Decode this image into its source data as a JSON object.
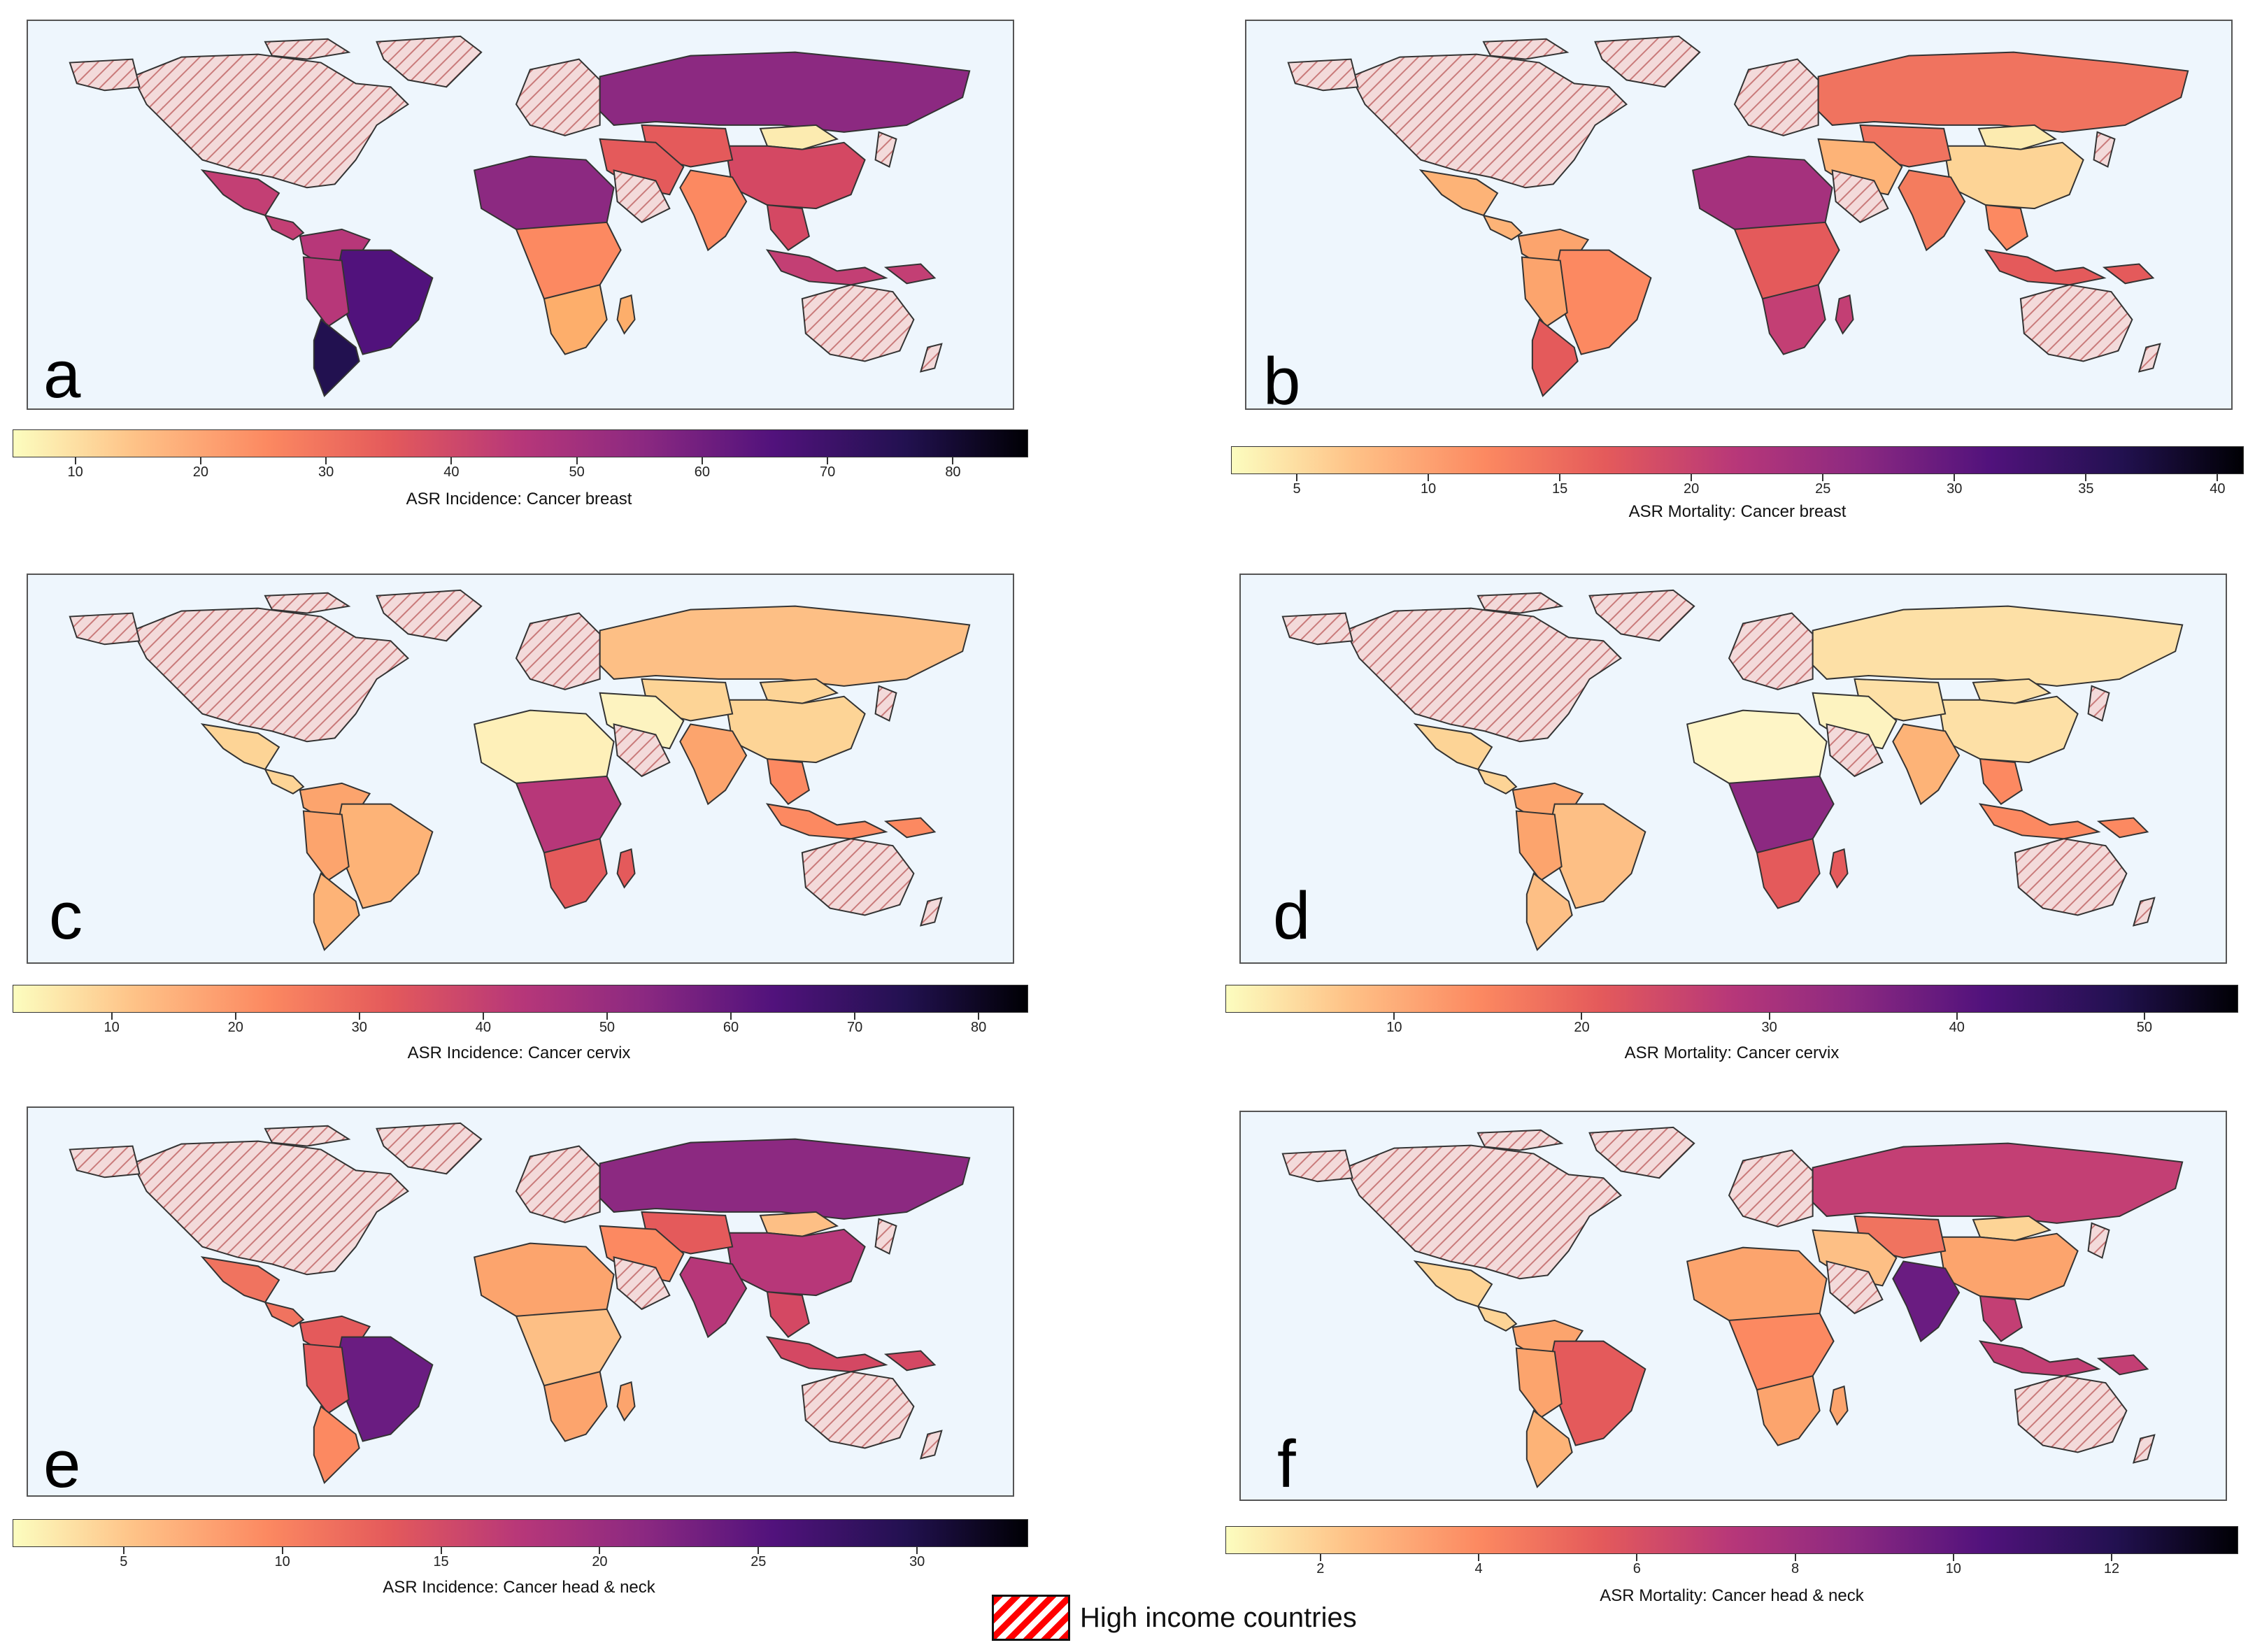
{
  "legend": {
    "label": "High income countries",
    "swatch_colors": [
      "#ff0000",
      "#ffffff"
    ]
  },
  "panels": [
    {
      "id": "a",
      "colorbar_label": "ASR Incidence: Cancer breast",
      "ticks": [
        "10",
        "20",
        "30",
        "40",
        "50",
        "60",
        "70",
        "80"
      ],
      "tick_values": [
        10,
        20,
        30,
        40,
        50,
        60,
        70,
        80
      ],
      "range": [
        5,
        86
      ]
    },
    {
      "id": "b",
      "colorbar_label": "ASR Mortality: Cancer breast",
      "ticks": [
        "5",
        "10",
        "15",
        "20",
        "25",
        "30",
        "35",
        "40"
      ],
      "tick_values": [
        5,
        10,
        15,
        20,
        25,
        30,
        35,
        40
      ],
      "range": [
        2.5,
        41
      ]
    },
    {
      "id": "c",
      "colorbar_label": "ASR Incidence: Cancer cervix",
      "ticks": [
        "10",
        "20",
        "30",
        "40",
        "50",
        "60",
        "70",
        "80"
      ],
      "tick_values": [
        10,
        20,
        30,
        40,
        50,
        60,
        70,
        80
      ],
      "range": [
        2,
        84
      ]
    },
    {
      "id": "d",
      "colorbar_label": "ASR Mortality: Cancer cervix",
      "ticks": [
        "10",
        "20",
        "30",
        "40",
        "50"
      ],
      "tick_values": [
        10,
        20,
        30,
        40,
        50
      ],
      "range": [
        1,
        55
      ]
    },
    {
      "id": "e",
      "colorbar_label": "ASR Incidence: Cancer head & neck",
      "ticks": [
        "5",
        "10",
        "15",
        "20",
        "25",
        "30"
      ],
      "tick_values": [
        5,
        10,
        15,
        20,
        25,
        30
      ],
      "range": [
        1.5,
        33.5
      ]
    },
    {
      "id": "f",
      "colorbar_label": "ASR Mortality: Cancer head & neck",
      "ticks": [
        "2",
        "4",
        "6",
        "8",
        "10",
        "12"
      ],
      "tick_values": [
        2,
        4,
        6,
        8,
        10,
        12
      ],
      "range": [
        0.8,
        13.6
      ]
    }
  ],
  "colors": {
    "map_background": "#eef6fd",
    "high_income_hatch": "#c97a7a",
    "high_income_fill": "#f3dada",
    "scale": [
      "#fcfdbf",
      "#fec287",
      "#fc8961",
      "#e45a5b",
      "#b73779",
      "#8c2981",
      "#51127c",
      "#221150",
      "#000004"
    ]
  },
  "region_colors": {
    "a": {
      "russia": "#8c2981",
      "latam": "#b73779",
      "brazil": "#51127c",
      "argentina": "#221150",
      "mexico": "#c33f74",
      "africa_n": "#8c2981",
      "africa_c": "#fc8961",
      "africa_s": "#fdae6b",
      "mideast": "#e45a5b",
      "india": "#fc8961",
      "china": "#d44863",
      "mongolia": "#fcebb0",
      "seasia": "#d44863",
      "centralasia": "#e45a5b",
      "indonesia": "#c33f74"
    },
    "b": {
      "russia": "#f0735f",
      "latam": "#fca46d",
      "brazil": "#fc8961",
      "argentina": "#e45a5b",
      "mexico": "#fdb377",
      "africa_n": "#a5317d",
      "africa_c": "#e45a5b",
      "africa_s": "#c33f74",
      "mideast": "#fdb377",
      "india": "#f47c5e",
      "china": "#fdd496",
      "mongolia": "#fcebb0",
      "seasia": "#fc8961",
      "centralasia": "#f0735f",
      "indonesia": "#e45a5b"
    },
    "c": {
      "russia": "#fdbf85",
      "latam": "#fca46d",
      "brazil": "#fdb377",
      "argentina": "#fdb377",
      "mexico": "#fdd496",
      "africa_n": "#fef0b9",
      "africa_c": "#b73779",
      "africa_s": "#e45a5b",
      "mideast": "#fdf3c0",
      "india": "#fca46d",
      "china": "#fdd496",
      "mongolia": "#fdd496",
      "seasia": "#fc8961",
      "centralasia": "#fdd496",
      "indonesia": "#fc8961"
    },
    "d": {
      "russia": "#fde0a6",
      "latam": "#fca46d",
      "brazil": "#fdbf85",
      "argentina": "#fdbf85",
      "mexico": "#fdd496",
      "africa_n": "#fef5c6",
      "africa_c": "#8c2981",
      "africa_s": "#e45a5b",
      "mideast": "#fdf3c0",
      "india": "#fdb377",
      "china": "#fde0a6",
      "mongolia": "#fde0a6",
      "seasia": "#fc8961",
      "centralasia": "#fde0a6",
      "indonesia": "#fc8961"
    },
    "e": {
      "russia": "#8c2981",
      "latam": "#e45a5b",
      "brazil": "#6a1c81",
      "argentina": "#fc8961",
      "mexico": "#f0735f",
      "africa_n": "#fca46d",
      "africa_c": "#fdbf85",
      "africa_s": "#fca46d",
      "mideast": "#fc8961",
      "india": "#b73779",
      "china": "#b73779",
      "mongolia": "#fdbf85",
      "seasia": "#d44863",
      "centralasia": "#e45a5b",
      "indonesia": "#d44863"
    },
    "f": {
      "russia": "#c33f74",
      "latam": "#fca46d",
      "brazil": "#e45a5b",
      "argentina": "#fdb377",
      "mexico": "#fdd496",
      "africa_n": "#fca46d",
      "africa_c": "#fc8961",
      "africa_s": "#fca46d",
      "mideast": "#fdbf85",
      "india": "#6a1c81",
      "china": "#fca46d",
      "mongolia": "#fdd496",
      "seasia": "#c33f74",
      "centralasia": "#f0735f",
      "indonesia": "#c33f74"
    }
  }
}
